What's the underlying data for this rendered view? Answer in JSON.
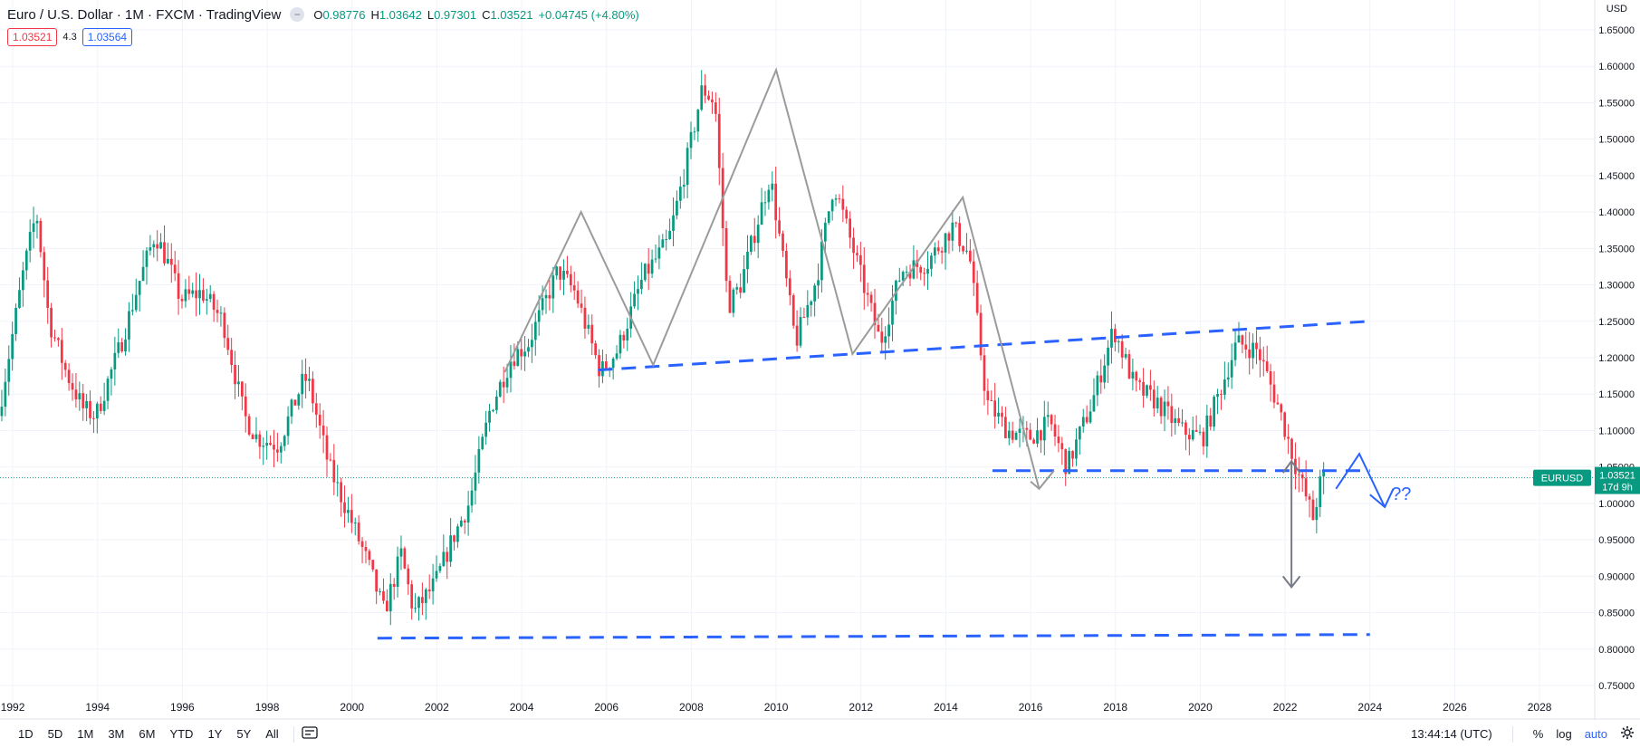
{
  "header": {
    "title": "Euro / U.S. Dollar · 1M · FXCM · TradingView",
    "ohlc": [
      {
        "label": "O",
        "value": "0.98776"
      },
      {
        "label": "H",
        "value": "1.03642"
      },
      {
        "label": "L",
        "value": "0.97301"
      },
      {
        "label": "C",
        "value": "1.03521"
      },
      {
        "label": "",
        "value": "+0.04745 (+4.80%)"
      }
    ],
    "bid": "1.03521",
    "spread": "4.3",
    "ask": "1.03564",
    "currency": "USD"
  },
  "colors": {
    "up": "#089981",
    "down": "#f23645",
    "accent": "#2962ff",
    "drawing": "#999999"
  },
  "chart_data": {
    "type": "candlestick",
    "symbol": "EURUSD",
    "last_price": "1.03521",
    "countdown": "17d 9h",
    "ylim": [
      0.75,
      1.65
    ],
    "y_ticks": [
      "1.65000",
      "1.60000",
      "1.55000",
      "1.50000",
      "1.45000",
      "1.40000",
      "1.35000",
      "1.30000",
      "1.25000",
      "1.20000",
      "1.15000",
      "1.10000",
      "1.05000",
      "1.00000",
      "0.95000",
      "0.90000",
      "0.85000",
      "0.80000",
      "0.75000"
    ],
    "x_ticks": [
      "1992",
      "1994",
      "1996",
      "1998",
      "2000",
      "2002",
      "2004",
      "2006",
      "2008",
      "2010",
      "2012",
      "2014",
      "2016",
      "2018",
      "2020",
      "2022",
      "2024",
      "2026",
      "2028"
    ],
    "xlim": [
      1991.7,
      2029.3
    ],
    "grid": true,
    "series_anchors": [
      [
        1991.7,
        1.12
      ],
      [
        1992.3,
        1.32
      ],
      [
        1992.6,
        1.4
      ],
      [
        1992.9,
        1.25
      ],
      [
        1993.3,
        1.18
      ],
      [
        1993.7,
        1.13
      ],
      [
        1994.0,
        1.12
      ],
      [
        1994.6,
        1.22
      ],
      [
        1995.0,
        1.3
      ],
      [
        1995.4,
        1.37
      ],
      [
        1995.7,
        1.33
      ],
      [
        1996.0,
        1.28
      ],
      [
        1996.5,
        1.29
      ],
      [
        1997.0,
        1.25
      ],
      [
        1997.5,
        1.12
      ],
      [
        1997.8,
        1.09
      ],
      [
        1998.3,
        1.08
      ],
      [
        1998.9,
        1.17
      ],
      [
        1999.0,
        1.17
      ],
      [
        1999.5,
        1.05
      ],
      [
        2000.0,
        0.98
      ],
      [
        2000.4,
        0.92
      ],
      [
        2000.8,
        0.85
      ],
      [
        2001.2,
        0.93
      ],
      [
        2001.5,
        0.85
      ],
      [
        2002.0,
        0.89
      ],
      [
        2002.4,
        0.95
      ],
      [
        2002.8,
        1.0
      ],
      [
        2003.3,
        1.13
      ],
      [
        2003.8,
        1.2
      ],
      [
        2004.2,
        1.22
      ],
      [
        2004.9,
        1.32
      ],
      [
        2005.3,
        1.29
      ],
      [
        2005.9,
        1.18
      ],
      [
        2006.3,
        1.21
      ],
      [
        2006.9,
        1.31
      ],
      [
        2007.5,
        1.36
      ],
      [
        2007.9,
        1.46
      ],
      [
        2008.3,
        1.57
      ],
      [
        2008.6,
        1.55
      ],
      [
        2008.9,
        1.27
      ],
      [
        2009.2,
        1.3
      ],
      [
        2009.9,
        1.45
      ],
      [
        2010.5,
        1.22
      ],
      [
        2011.0,
        1.31
      ],
      [
        2011.4,
        1.44
      ],
      [
        2011.8,
        1.36
      ],
      [
        2012.5,
        1.22
      ],
      [
        2013.0,
        1.32
      ],
      [
        2013.6,
        1.33
      ],
      [
        2014.2,
        1.38
      ],
      [
        2014.6,
        1.34
      ],
      [
        2015.0,
        1.14
      ],
      [
        2015.5,
        1.1
      ],
      [
        2016.0,
        1.09
      ],
      [
        2016.5,
        1.11
      ],
      [
        2016.9,
        1.05
      ],
      [
        2017.5,
        1.14
      ],
      [
        2018.0,
        1.24
      ],
      [
        2018.5,
        1.16
      ],
      [
        2019.0,
        1.14
      ],
      [
        2019.6,
        1.1
      ],
      [
        2020.1,
        1.09
      ],
      [
        2020.6,
        1.17
      ],
      [
        2020.9,
        1.22
      ],
      [
        2021.4,
        1.21
      ],
      [
        2021.9,
        1.13
      ],
      [
        2022.3,
        1.05
      ],
      [
        2022.7,
        0.98
      ],
      [
        2022.9,
        1.03521
      ]
    ]
  }
}
